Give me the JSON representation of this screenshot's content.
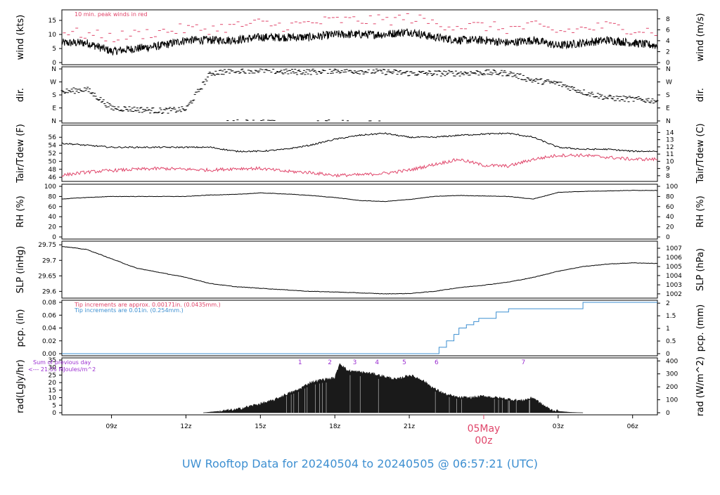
{
  "title": "UW Rooftop Data for 20240504  to  20240505 @ 06:57:21  (UTC)",
  "colors": {
    "red": "#e0456a",
    "blue": "#3d8fd1",
    "purple": "#9b2fd1",
    "black": "#000000",
    "grey": "#999999"
  },
  "chart_data": {
    "type": "line",
    "time_axis": {
      "unit": "hours since 20240504 00z (UTC)",
      "range": [
        7.0,
        31.0
      ],
      "ticks": [
        {
          "value": 9,
          "label": "09z"
        },
        {
          "value": 12,
          "label": "12z"
        },
        {
          "value": 15,
          "label": "15z"
        },
        {
          "value": 18,
          "label": "18z"
        },
        {
          "value": 21,
          "label": "21z"
        },
        {
          "value": 27,
          "label": "03z"
        },
        {
          "value": 30,
          "label": "06z"
        }
      ],
      "day_marker": {
        "value": 24,
        "date_label": "05May",
        "time_label": "00z"
      }
    },
    "panels": [
      {
        "id": "wind",
        "ylabel_left": "wind (kts)",
        "ylabel_right": "wind (m/s)",
        "ylim": [
          0,
          18
        ],
        "yticks_left": [
          0,
          5,
          10,
          15
        ],
        "yticks_right": [
          {
            "label": "0",
            "value": 0
          },
          {
            "label": "2",
            "value": 3.89
          },
          {
            "label": "4",
            "value": 7.78
          },
          {
            "label": "6",
            "value": 11.66
          },
          {
            "label": "8",
            "value": 15.55
          }
        ],
        "annotation": "10 min. peak winds in red",
        "series": [
          {
            "style": "mean",
            "color": "#000000",
            "x": [
              7,
              8,
              9,
              10,
              11,
              12,
              13,
              14,
              15,
              16,
              17,
              18,
              19,
              20,
              21,
              22,
              23,
              24,
              25,
              26,
              27,
              28,
              29,
              30,
              31
            ],
            "y": [
              7,
              7,
              4,
              5,
              6,
              8,
              8,
              8,
              9,
              9,
              9,
              10,
              10,
              10,
              11,
              9,
              8,
              8,
              7,
              8,
              6,
              7,
              8,
              7,
              6
            ]
          },
          {
            "style": "peak",
            "color": "#e0456a",
            "x": [
              7,
              8,
              9,
              10,
              11,
              12,
              13,
              14,
              15,
              16,
              17,
              18,
              19,
              20,
              21,
              22,
              23,
              24,
              25,
              26,
              27,
              28,
              29,
              30,
              31
            ],
            "y": [
              11,
              10,
              9,
              10,
              11,
              12,
              12,
              13,
              14,
              13,
              14,
              15,
              15,
              15,
              16,
              14,
              13,
              13,
              12,
              13,
              11,
              12,
              13,
              12,
              11
            ]
          }
        ]
      },
      {
        "id": "dir",
        "ylabel_left": "dir.",
        "ylabel_right": "dir.",
        "yticks_left": [
          "N",
          "E",
          "S",
          "W",
          "N"
        ],
        "yticks_right": [
          "N",
          "E",
          "S",
          "W",
          "N"
        ],
        "series": [
          {
            "style": "points",
            "color": "#000000",
            "x": [
              7,
              8,
              9,
              10,
              11,
              12,
              13,
              14,
              15,
              16,
              17,
              18,
              19,
              20,
              21,
              22,
              23,
              24,
              25,
              26,
              27,
              28,
              29,
              30,
              31
            ],
            "y": [
              200,
              220,
              90,
              80,
              70,
              80,
              330,
              350,
              350,
              340,
              340,
              350,
              345,
              340,
              330,
              330,
              330,
              335,
              330,
              280,
              260,
              200,
              160,
              150,
              140
            ]
          }
        ]
      },
      {
        "id": "temp",
        "ylabel_left": "Tair/Tdew (F)",
        "ylabel_right": "Tair/Tdew (C)",
        "ylim": [
          45.5,
          58.5
        ],
        "yticks_left": [
          46,
          48,
          50,
          52,
          54,
          56
        ],
        "yticks_right": [
          {
            "label": "8",
            "value": 46.4
          },
          {
            "label": "9",
            "value": 48.2
          },
          {
            "label": "10",
            "value": 50.0
          },
          {
            "label": "11",
            "value": 51.8
          },
          {
            "label": "12",
            "value": 53.6
          },
          {
            "label": "13",
            "value": 55.4
          },
          {
            "label": "14",
            "value": 57.2
          }
        ],
        "series": [
          {
            "name": "Tair",
            "color": "#000000",
            "x": [
              7,
              8,
              9,
              10,
              11,
              12,
              13,
              14,
              15,
              16,
              17,
              18,
              19,
              20,
              21,
              22,
              23,
              24,
              25,
              26,
              27,
              28,
              29,
              30,
              31
            ],
            "y": [
              54.5,
              54,
              53.5,
              53.5,
              53.5,
              53.5,
              53.5,
              52.5,
              52.5,
              53,
              54,
              55.5,
              56.5,
              57,
              56,
              56,
              56.5,
              56.8,
              57,
              56,
              53.5,
              53,
              53,
              52.5,
              52.5
            ]
          },
          {
            "name": "Tdew",
            "color": "#e0456a",
            "x": [
              7,
              8,
              9,
              10,
              11,
              12,
              13,
              14,
              15,
              16,
              17,
              18,
              19,
              20,
              21,
              22,
              23,
              24,
              25,
              26,
              27,
              28,
              29,
              30,
              31
            ],
            "y": [
              46.5,
              47.3,
              47.7,
              48,
              48.2,
              48,
              47.8,
              48.2,
              48.2,
              47.5,
              47.2,
              46.5,
              46.6,
              47,
              47.8,
              49.2,
              50.5,
              49,
              48.8,
              50.5,
              51.5,
              51.5,
              51,
              50.5,
              50.5
            ]
          }
        ]
      },
      {
        "id": "rh",
        "ylabel_left": "RH (%)",
        "ylabel_right": "RH (%)",
        "ylim": [
          0,
          100
        ],
        "yticks_left": [
          0,
          20,
          40,
          60,
          80,
          100
        ],
        "yticks_right": [
          0,
          20,
          40,
          60,
          80,
          100
        ],
        "series": [
          {
            "name": "RH",
            "color": "#000000",
            "x": [
              7,
              8,
              9,
              10,
              11,
              12,
              13,
              14,
              15,
              16,
              17,
              18,
              19,
              20,
              21,
              22,
              23,
              24,
              25,
              26,
              27,
              28,
              29,
              30,
              31
            ],
            "y": [
              75,
              78,
              80,
              80,
              80,
              80,
              83,
              84,
              87,
              85,
              82,
              78,
              72,
              70,
              74,
              80,
              82,
              81,
              80,
              75,
              88,
              90,
              91,
              92,
              92
            ]
          }
        ]
      },
      {
        "id": "slp",
        "ylabel_left": "SLP (inHg)",
        "ylabel_right": "SLP (hPa)",
        "ylim": [
          29.585,
          29.755
        ],
        "yticks_left": [
          29.6,
          29.65,
          29.7,
          29.75
        ],
        "yticks_right": [
          {
            "label": "1002",
            "value": 29.592
          },
          {
            "label": "1003",
            "value": 29.621
          },
          {
            "label": "1004",
            "value": 29.651
          },
          {
            "label": "1005",
            "value": 29.68
          },
          {
            "label": "1006",
            "value": 29.71
          },
          {
            "label": "1007",
            "value": 29.739
          }
        ],
        "series": [
          {
            "name": "SLP",
            "color": "#000000",
            "x": [
              7,
              8,
              9,
              10,
              11,
              12,
              13,
              14,
              15,
              16,
              17,
              18,
              19,
              20,
              21,
              22,
              23,
              24,
              25,
              26,
              27,
              28,
              29,
              30,
              31
            ],
            "y": [
              29.745,
              29.735,
              29.705,
              29.675,
              29.66,
              29.645,
              29.625,
              29.615,
              29.61,
              29.605,
              29.6,
              29.598,
              29.595,
              29.592,
              29.593,
              29.6,
              29.612,
              29.62,
              29.63,
              29.645,
              29.665,
              29.68,
              29.688,
              29.692,
              29.69
            ]
          }
        ]
      },
      {
        "id": "pcp",
        "ylabel_left": "pcp. (in)",
        "ylabel_right": "pcp. (mm)",
        "ylim": [
          0,
          0.08
        ],
        "yticks_left": [
          "0.00",
          "0.02",
          "0.04",
          "0.06",
          "0.08"
        ],
        "yticks_right": [
          {
            "label": "0",
            "value": 0
          },
          {
            "label": "0.5",
            "value": 0.01969
          },
          {
            "label": "1",
            "value": 0.03937
          },
          {
            "label": "1.5",
            "value": 0.05906
          },
          {
            "label": "2",
            "value": 0.07874
          }
        ],
        "annotations": [
          "Tip increments are approx. 0.00171in. (0.0435mm.)",
          "Tip increments are 0.01in. (0.254mm.)"
        ],
        "series": [
          {
            "name": "pcp",
            "color": "#3d8fd1",
            "x": [
              7,
              22,
              22.2,
              22.5,
              22.8,
              23.0,
              23.3,
              23.6,
              23.8,
              24.0,
              24.5,
              25.0,
              26.0,
              27.0,
              27.8,
              28.0,
              31.0
            ],
            "y": [
              0,
              0,
              0.01,
              0.02,
              0.03,
              0.04,
              0.045,
              0.05,
              0.055,
              0.055,
              0.065,
              0.07,
              0.07,
              0.07,
              0.07,
              0.08,
              0.08
            ]
          }
        ]
      },
      {
        "id": "rad",
        "ylabel_left": "rad(Lgly/hr)",
        "ylabel_right": "rad (W/m^2)",
        "ylim": [
          0,
          35
        ],
        "yticks_left": [
          0,
          5,
          10,
          15,
          20,
          25,
          30,
          35
        ],
        "yticks_right": [
          {
            "label": "0",
            "value": 0
          },
          {
            "label": "100",
            "value": 8.6
          },
          {
            "label": "200",
            "value": 17.2
          },
          {
            "label": "300",
            "value": 25.8
          },
          {
            "label": "400",
            "value": 34.4
          }
        ],
        "annotations": [
          "Sum of previous day",
          "<--- 21.55 MJoules/m^2"
        ],
        "markers": [
          {
            "label": "1",
            "x": 16.6
          },
          {
            "label": "2",
            "x": 17.8
          },
          {
            "label": "3",
            "x": 18.8
          },
          {
            "label": "4",
            "x": 19.7
          },
          {
            "label": "5",
            "x": 20.8
          },
          {
            "label": "6",
            "x": 22.1
          },
          {
            "label": "7",
            "x": 25.6
          }
        ],
        "series": [
          {
            "name": "rad",
            "color": "#1a1a1a",
            "x": [
              12.7,
              13,
              14,
              14.5,
              15,
              15.5,
              16,
              16.5,
              17,
              17.5,
              18,
              18.2,
              18.5,
              19,
              19.5,
              20,
              20.5,
              21,
              21.5,
              22,
              22.5,
              23,
              23.5,
              24,
              24.5,
              25,
              25.5,
              26,
              26.3,
              26.7,
              27,
              27.5,
              28.0
            ],
            "y": [
              0,
              0.5,
              2,
              4,
              6,
              8,
              12,
              15,
              20,
              22,
              23,
              33,
              28,
              27,
              26,
              24,
              22,
              25,
              22,
              16,
              12,
              10,
              10,
              11,
              10,
              9,
              8,
              10,
              6,
              2,
              1,
              0.3,
              0
            ]
          }
        ]
      }
    ]
  }
}
